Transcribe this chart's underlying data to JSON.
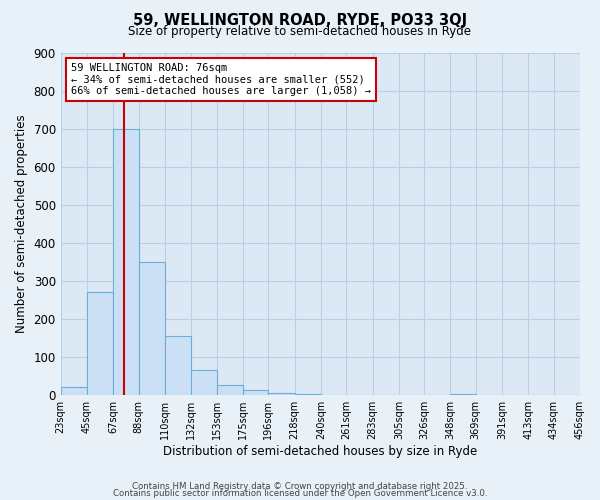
{
  "title": "59, WELLINGTON ROAD, RYDE, PO33 3QJ",
  "subtitle": "Size of property relative to semi-detached houses in Ryde",
  "xlabel": "Distribution of semi-detached houses by size in Ryde",
  "ylabel": "Number of semi-detached properties",
  "bar_edges": [
    23,
    45,
    67,
    88,
    110,
    132,
    153,
    175,
    196,
    218,
    240,
    261,
    283,
    305,
    326,
    348,
    369,
    391,
    413,
    434,
    456
  ],
  "bar_heights": [
    20,
    270,
    700,
    350,
    155,
    65,
    25,
    12,
    5,
    3,
    0,
    0,
    0,
    0,
    0,
    3,
    0,
    0,
    0,
    0
  ],
  "bar_color": "#cce0f5",
  "bar_edge_color": "#6baed6",
  "vline_x": 76,
  "vline_color": "#cc0000",
  "ylim": [
    0,
    900
  ],
  "yticks": [
    0,
    100,
    200,
    300,
    400,
    500,
    600,
    700,
    800,
    900
  ],
  "annotation_title": "59 WELLINGTON ROAD: 76sqm",
  "annotation_line1": "← 34% of semi-detached houses are smaller (552)",
  "annotation_line2": "66% of semi-detached houses are larger (1,058) →",
  "annotation_box_color": "#ffffff",
  "annotation_box_edge": "#cc0000",
  "footer1": "Contains HM Land Registry data © Crown copyright and database right 2025.",
  "footer2": "Contains public sector information licensed under the Open Government Licence v3.0.",
  "bg_color": "#e8f0f8",
  "plot_bg_color": "#dce9f5",
  "grid_color": "#b8cfe8"
}
